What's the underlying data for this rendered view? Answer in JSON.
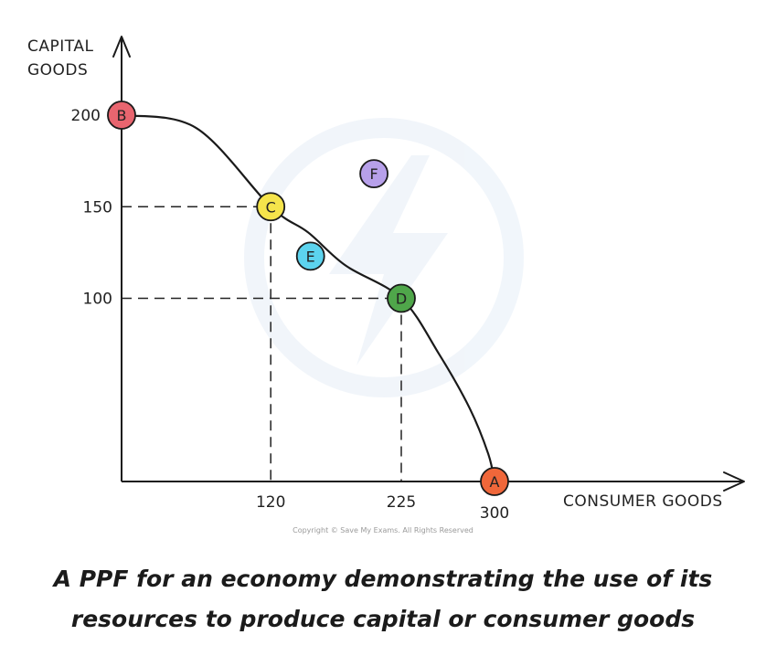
{
  "chart_data": {
    "type": "line",
    "ylabel_lines": [
      "CAPITAL",
      "GOODS"
    ],
    "xlabel": "CONSUMER GOODS",
    "xlim": [
      0,
      300
    ],
    "ylim": [
      0,
      200
    ],
    "x_ticks": [
      {
        "value": 120,
        "label": "120"
      },
      {
        "value": 225,
        "label": "225"
      },
      {
        "value": 300,
        "label": "300"
      }
    ],
    "y_ticks": [
      {
        "value": 200,
        "label": "200"
      },
      {
        "value": 150,
        "label": "150"
      },
      {
        "value": 100,
        "label": "100"
      }
    ],
    "curve": {
      "name": "PPF",
      "points": [
        [
          0,
          200
        ],
        [
          60,
          193
        ],
        [
          120,
          150
        ],
        [
          150,
          136
        ],
        [
          180,
          118
        ],
        [
          225,
          100
        ],
        [
          255,
          70
        ],
        [
          280,
          40
        ],
        [
          295,
          15
        ],
        [
          300,
          0
        ]
      ]
    },
    "points": [
      {
        "label": "B",
        "x": 0,
        "y": 200,
        "color": "#e8656f"
      },
      {
        "label": "C",
        "x": 120,
        "y": 150,
        "color": "#f5e44b"
      },
      {
        "label": "D",
        "x": 225,
        "y": 100,
        "color": "#4fa64a"
      },
      {
        "label": "A",
        "x": 300,
        "y": 0,
        "color": "#f0673a"
      },
      {
        "label": "E",
        "x": 152,
        "y": 123,
        "color": "#5cd3ee"
      },
      {
        "label": "F",
        "x": 203,
        "y": 168,
        "color": "#b7a0ea"
      }
    ],
    "guides": [
      {
        "x": 120,
        "y": 150
      },
      {
        "x": 225,
        "y": 100
      }
    ],
    "grid": false
  },
  "copyright": "Copyright © Save My Exams. All Rights Reserved",
  "caption": {
    "line1": "A PPF for an economy demonstrating the use of its",
    "line2": "resources to produce capital or consumer goods"
  },
  "colors": {
    "axis": "#1a1a1a",
    "watermark": "#e6eef7"
  }
}
